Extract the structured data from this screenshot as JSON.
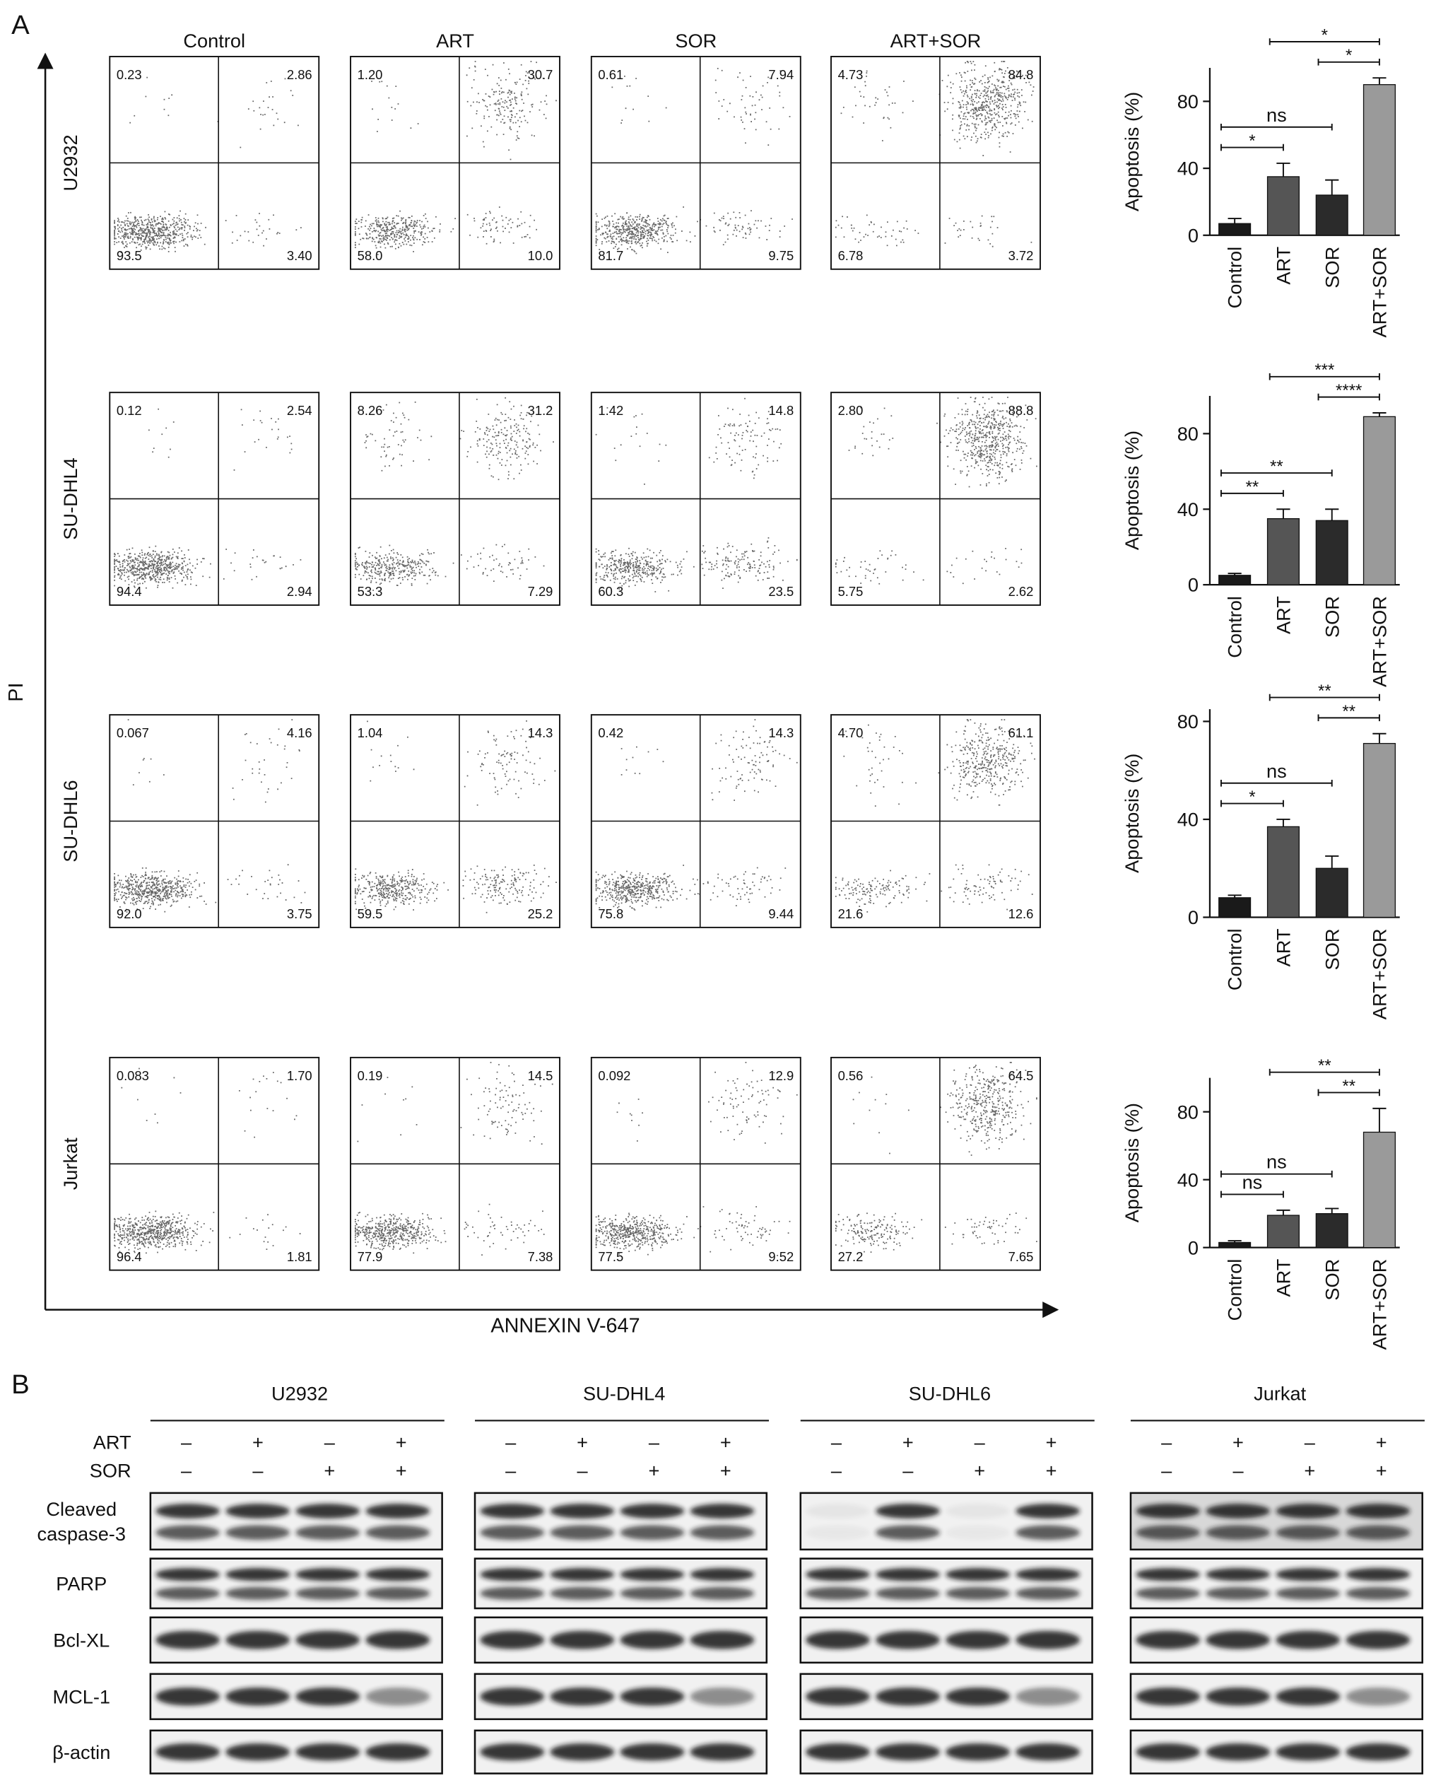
{
  "panel_a": {
    "label": "A",
    "y_axis": "PI",
    "x_axis": "ANNEXIN V-647",
    "conditions": [
      "Control",
      "ART",
      "SOR",
      "ART+SOR"
    ],
    "cell_lines": [
      {
        "name": "U2932",
        "quadrants": [
          [
            "0.23",
            "2.86",
            "93.5",
            "3.40"
          ],
          [
            "1.20",
            "30.7",
            "58.0",
            "10.0"
          ],
          [
            "0.61",
            "7.94",
            "81.7",
            "9.75"
          ],
          [
            "4.73",
            "84.8",
            "6.78",
            "3.72"
          ]
        ]
      },
      {
        "name": "SU-DHL4",
        "quadrants": [
          [
            "0.12",
            "2.54",
            "94.4",
            "2.94"
          ],
          [
            "8.26",
            "31.2",
            "53.3",
            "7.29"
          ],
          [
            "1.42",
            "14.8",
            "60.3",
            "23.5"
          ],
          [
            "2.80",
            "88.8",
            "5.75",
            "2.62"
          ]
        ]
      },
      {
        "name": "SU-DHL6",
        "quadrants": [
          [
            "0.067",
            "4.16",
            "92.0",
            "3.75"
          ],
          [
            "1.04",
            "14.3",
            "59.5",
            "25.2"
          ],
          [
            "0.42",
            "14.3",
            "75.8",
            "9.44"
          ],
          [
            "4.70",
            "61.1",
            "21.6",
            "12.6"
          ]
        ]
      },
      {
        "name": "Jurkat",
        "quadrants": [
          [
            "0.083",
            "1.70",
            "96.4",
            "1.81"
          ],
          [
            "0.19",
            "14.5",
            "77.9",
            "7.38"
          ],
          [
            "0.092",
            "12.9",
            "77.5",
            "9.52"
          ],
          [
            "0.56",
            "64.5",
            "27.2",
            "7.65"
          ]
        ]
      }
    ],
    "bar_charts": [
      {
        "type": "bar",
        "ylabel": "Apoptosis (%)",
        "categories": [
          "Control",
          "ART",
          "SOR",
          "ART+SOR"
        ],
        "values": [
          7,
          35,
          24,
          90
        ],
        "errors": [
          3,
          8,
          9,
          4
        ],
        "colors": [
          "#1a1a1a",
          "#555555",
          "#2b2b2b",
          "#9a9a9a"
        ],
        "ylim": [
          0,
          100
        ],
        "yticks": [
          0,
          40,
          80
        ],
        "significance": [
          {
            "from": 0,
            "to": 1,
            "label": "*"
          },
          {
            "from": 0,
            "to": 2,
            "label": "ns"
          },
          {
            "from": 2,
            "to": 3,
            "label": "*"
          },
          {
            "from": 1,
            "to": 3,
            "label": "*"
          }
        ]
      },
      {
        "type": "bar",
        "ylabel": "Apoptosis (%)",
        "categories": [
          "Control",
          "ART",
          "SOR",
          "ART+SOR"
        ],
        "values": [
          5,
          35,
          34,
          89
        ],
        "errors": [
          1,
          5,
          6,
          2
        ],
        "colors": [
          "#1a1a1a",
          "#555555",
          "#2b2b2b",
          "#9a9a9a"
        ],
        "ylim": [
          0,
          100
        ],
        "yticks": [
          0,
          40,
          80
        ],
        "significance": [
          {
            "from": 0,
            "to": 1,
            "label": "**"
          },
          {
            "from": 0,
            "to": 2,
            "label": "**"
          },
          {
            "from": 2,
            "to": 3,
            "label": "****"
          },
          {
            "from": 1,
            "to": 3,
            "label": "***"
          }
        ]
      },
      {
        "type": "bar",
        "ylabel": "Apoptosis (%)",
        "categories": [
          "Control",
          "ART",
          "SOR",
          "ART+SOR"
        ],
        "values": [
          8,
          37,
          20,
          71
        ],
        "errors": [
          1,
          3,
          5,
          4
        ],
        "colors": [
          "#1a1a1a",
          "#555555",
          "#2b2b2b",
          "#9a9a9a"
        ],
        "ylim": [
          0,
          85
        ],
        "yticks": [
          0,
          40,
          80
        ],
        "significance": [
          {
            "from": 0,
            "to": 1,
            "label": "*"
          },
          {
            "from": 0,
            "to": 2,
            "label": "ns"
          },
          {
            "from": 2,
            "to": 3,
            "label": "**"
          },
          {
            "from": 1,
            "to": 3,
            "label": "**"
          }
        ]
      },
      {
        "type": "bar",
        "ylabel": "Apoptosis (%)",
        "categories": [
          "Control",
          "ART",
          "SOR",
          "ART+SOR"
        ],
        "values": [
          3,
          19,
          20,
          68
        ],
        "errors": [
          1,
          3,
          3,
          14
        ],
        "colors": [
          "#1a1a1a",
          "#555555",
          "#2b2b2b",
          "#9a9a9a"
        ],
        "ylim": [
          0,
          100
        ],
        "yticks": [
          0,
          40,
          80
        ],
        "significance": [
          {
            "from": 0,
            "to": 1,
            "label": "ns"
          },
          {
            "from": 0,
            "to": 2,
            "label": "ns"
          },
          {
            "from": 2,
            "to": 3,
            "label": "**"
          },
          {
            "from": 1,
            "to": 3,
            "label": "**"
          }
        ]
      }
    ]
  },
  "panel_b": {
    "label": "B",
    "cell_lines": [
      "U2932",
      "SU-DHL4",
      "SU-DHL6",
      "Jurkat"
    ],
    "treatments": [
      {
        "name": "ART",
        "signs": [
          "–",
          "+",
          "–",
          "+"
        ]
      },
      {
        "name": "SOR",
        "signs": [
          "–",
          "–",
          "+",
          "+"
        ]
      }
    ],
    "proteins": [
      {
        "label": [
          "Cleaved",
          "caspase-3"
        ]
      },
      {
        "label": [
          "PARP"
        ]
      },
      {
        "label": [
          "Bcl-XL"
        ]
      },
      {
        "label": [
          "MCL-1"
        ]
      },
      {
        "label": [
          "β-actin"
        ]
      }
    ]
  }
}
